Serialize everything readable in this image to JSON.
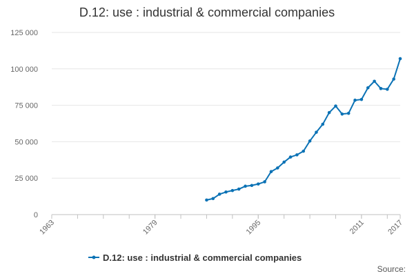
{
  "chart_data": {
    "type": "line",
    "title": "D.12: use : industrial & commercial companies",
    "xlabel": "",
    "ylabel": "",
    "xlim": [
      1963,
      2017
    ],
    "ylim": [
      0,
      125000
    ],
    "x_ticks": [
      "1963",
      "1979",
      "1995",
      "2011",
      "2017"
    ],
    "y_ticks": [
      "0",
      "25 000",
      "50 000",
      "75 000",
      "100 000",
      "125 000"
    ],
    "y_tick_values": [
      0,
      25000,
      50000,
      75000,
      100000,
      125000
    ],
    "grid": true,
    "legend_position": "bottom",
    "series": [
      {
        "name": "D.12: use : industrial & commercial companies",
        "color": "#0b72b5",
        "x": [
          1987,
          1988,
          1989,
          1990,
          1991,
          1992,
          1993,
          1994,
          1995,
          1996,
          1997,
          1998,
          1999,
          2000,
          2001,
          2002,
          2003,
          2004,
          2005,
          2006,
          2007,
          2008,
          2009,
          2010,
          2011,
          2012,
          2013,
          2014,
          2015,
          2016,
          2017
        ],
        "values": [
          10000,
          11000,
          14000,
          15500,
          16500,
          17500,
          19500,
          20000,
          21000,
          22500,
          29500,
          32000,
          36000,
          39500,
          41000,
          43500,
          50500,
          56500,
          62000,
          70000,
          74500,
          69000,
          69500,
          78500,
          79000,
          87000,
          91500,
          86500,
          86000,
          93000,
          107000
        ]
      }
    ],
    "source_label": "Source:"
  }
}
